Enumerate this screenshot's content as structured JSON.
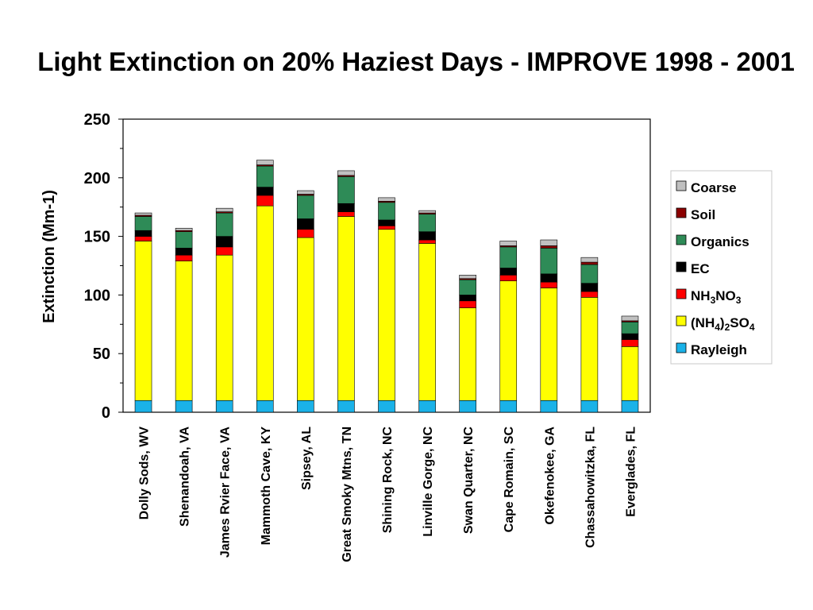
{
  "chart_data": {
    "type": "bar",
    "stacked": true,
    "title": "Light Extinction on 20% Haziest Days - IMPROVE 1998 - 2001",
    "xlabel": "",
    "ylabel": "Extinction (Mm-1)",
    "ylim": [
      0,
      250
    ],
    "yticks": [
      0,
      50,
      100,
      150,
      200,
      250
    ],
    "grid": false,
    "legend_position": "right",
    "categories": [
      "Dolly Sods, WV",
      "Shenandoah, VA",
      "James Rvier Face, VA",
      "Mammoth Cave, KY",
      "Sipsey, AL",
      "Great Smoky Mtns, TN",
      "Shining Rock, NC",
      "Linville Gorge, NC",
      "Swan Quarter, NC",
      "Cape Romain, SC",
      "Okefenokee, GA",
      "Chassahowitzka, FL",
      "Everglades, FL"
    ],
    "series": [
      {
        "name": "Rayleigh",
        "label_parts": [
          [
            "Rayleigh",
            ""
          ]
        ],
        "color": "#1ab2e8",
        "values": [
          10,
          10,
          10,
          10,
          10,
          10,
          10,
          10,
          10,
          10,
          10,
          10,
          10
        ]
      },
      {
        "name": "(NH4)2SO4",
        "label_parts": [
          [
            "(NH",
            ""
          ],
          [
            "4",
            "sub"
          ],
          [
            ")",
            ""
          ],
          [
            "2",
            "sub"
          ],
          [
            "SO",
            ""
          ],
          [
            "4",
            "sub"
          ]
        ],
        "color": "#ffff00",
        "values": [
          136,
          119,
          124,
          166,
          139,
          157,
          146,
          134,
          79,
          102,
          96,
          88,
          46
        ]
      },
      {
        "name": "NH3NO3",
        "label_parts": [
          [
            "NH",
            ""
          ],
          [
            "3",
            "sub"
          ],
          [
            "NO",
            ""
          ],
          [
            "3",
            "sub"
          ]
        ],
        "color": "#ff0000",
        "values": [
          4,
          5,
          7,
          9,
          7,
          4,
          3,
          3,
          6,
          5,
          5,
          5,
          6
        ]
      },
      {
        "name": "EC",
        "label_parts": [
          [
            "EC",
            ""
          ]
        ],
        "color": "#000000",
        "values": [
          5,
          6,
          9,
          7,
          9,
          7,
          5,
          7,
          5,
          6,
          7,
          7,
          5
        ]
      },
      {
        "name": "Organics",
        "label_parts": [
          [
            "Organics",
            ""
          ]
        ],
        "color": "#2e8b57",
        "values": [
          12,
          14,
          20,
          18,
          20,
          23,
          15,
          15,
          13,
          18,
          22,
          16,
          10
        ]
      },
      {
        "name": "Soil",
        "label_parts": [
          [
            "Soil",
            ""
          ]
        ],
        "color": "#8b0000",
        "values": [
          1,
          1,
          1,
          1,
          1,
          1,
          1,
          1,
          1,
          1,
          2,
          2,
          1
        ]
      },
      {
        "name": "Coarse",
        "label_parts": [
          [
            "Coarse",
            ""
          ]
        ],
        "color": "#c0c0c0",
        "values": [
          2,
          2,
          3,
          4,
          3,
          4,
          3,
          2,
          3,
          4,
          5,
          4,
          4
        ]
      }
    ]
  }
}
